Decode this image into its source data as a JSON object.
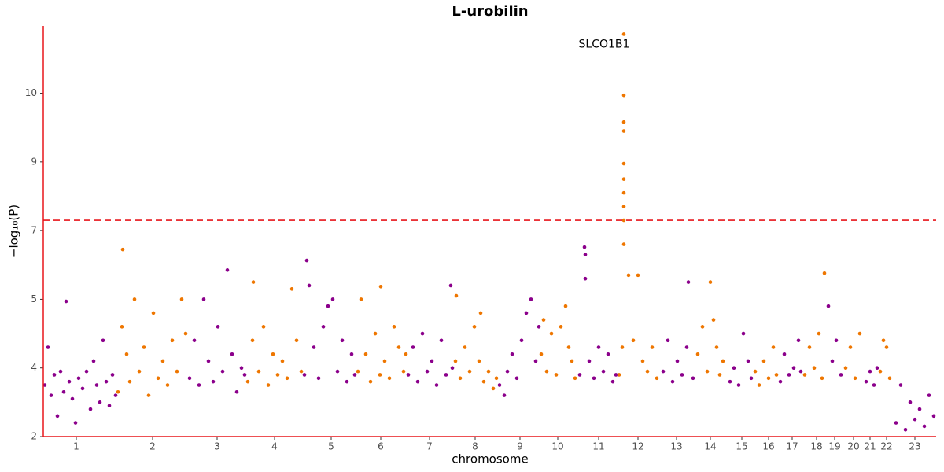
{
  "chart_data": {
    "type": "scatter",
    "title": "L-urobilin",
    "xlabel": "chromosome",
    "ylabel": "−log₁₀(P)",
    "annotation": "SLCO1B1",
    "threshold": 7.3,
    "threshold_color": "#e8161b",
    "xlim": [
      0,
      1135
    ],
    "xticks": [
      {
        "value": 42,
        "label": "1"
      },
      {
        "value": 139,
        "label": "2"
      },
      {
        "value": 221,
        "label": "3"
      },
      {
        "value": 294,
        "label": "4"
      },
      {
        "value": 366,
        "label": "5"
      },
      {
        "value": 429,
        "label": "6"
      },
      {
        "value": 491,
        "label": "7"
      },
      {
        "value": 549,
        "label": "8"
      },
      {
        "value": 606,
        "label": "9"
      },
      {
        "value": 654,
        "label": "10"
      },
      {
        "value": 706,
        "label": "11"
      },
      {
        "value": 756,
        "label": "12"
      },
      {
        "value": 805,
        "label": "13"
      },
      {
        "value": 848,
        "label": "14"
      },
      {
        "value": 888,
        "label": "15"
      },
      {
        "value": 922,
        "label": "16"
      },
      {
        "value": 952,
        "label": "17"
      },
      {
        "value": 983,
        "label": "18"
      },
      {
        "value": 1006,
        "label": "19"
      },
      {
        "value": 1030,
        "label": "20"
      },
      {
        "value": 1051,
        "label": "21"
      },
      {
        "value": 1072,
        "label": "22"
      },
      {
        "value": 1108,
        "label": "23"
      }
    ],
    "ylim": [
      2,
      10.98
    ],
    "yticks": [
      2,
      4,
      5,
      7,
      9,
      10
    ],
    "series": [
      {
        "color": "#8b008b",
        "x": [
          2,
          6,
          10,
          14,
          18,
          22,
          26,
          29,
          33,
          37,
          41,
          45,
          50,
          55,
          60,
          64,
          68,
          72,
          76,
          80,
          84,
          88,
          92
        ],
        "values": [
          3.5,
          4.3,
          3.2,
          3.8,
          2.6,
          3.9,
          3.3,
          4.97,
          3.6,
          3.1,
          2.4,
          3.7,
          3.4,
          3.9,
          2.8,
          4.1,
          3.5,
          3.0,
          4.4,
          3.6,
          2.9,
          3.8,
          3.2
        ]
      },
      {
        "color": "#ee7600",
        "x": [
          95,
          100,
          101,
          106,
          110,
          116,
          122,
          128,
          134,
          140,
          146,
          152,
          158,
          164,
          170,
          176,
          181
        ],
        "values": [
          3.3,
          4.6,
          6.45,
          4.2,
          3.6,
          5.0,
          3.9,
          4.3,
          3.2,
          4.8,
          3.7,
          4.1,
          3.5,
          4.4,
          3.9,
          5.0,
          4.5
        ]
      },
      {
        "color": "#8b008b",
        "x": [
          186,
          192,
          198,
          204,
          210,
          216,
          222,
          228,
          234,
          240,
          246,
          252,
          256
        ],
        "values": [
          3.7,
          4.4,
          3.5,
          5.0,
          4.1,
          3.6,
          4.6,
          3.9,
          5.85,
          4.2,
          3.3,
          4.0,
          3.8
        ]
      },
      {
        "color": "#ee7600",
        "x": [
          260,
          266,
          267,
          274,
          280,
          286,
          292,
          298,
          304,
          310,
          316,
          322,
          328
        ],
        "values": [
          3.6,
          4.4,
          5.5,
          3.9,
          4.6,
          3.5,
          4.2,
          3.8,
          4.1,
          3.7,
          5.3,
          4.4,
          3.9
        ]
      },
      {
        "color": "#8b008b",
        "x": [
          332,
          335,
          338,
          344,
          350,
          356,
          362,
          368,
          374,
          380,
          386,
          392,
          396
        ],
        "values": [
          3.8,
          6.13,
          5.4,
          4.3,
          3.7,
          4.6,
          4.9,
          5.0,
          3.9,
          4.4,
          3.6,
          4.2,
          3.8
        ]
      },
      {
        "color": "#ee7600",
        "x": [
          400,
          404,
          410,
          416,
          422,
          428,
          429,
          434,
          440,
          446,
          452,
          458,
          461
        ],
        "values": [
          3.9,
          5.0,
          4.2,
          3.6,
          4.5,
          3.8,
          5.37,
          4.1,
          3.7,
          4.6,
          4.3,
          3.9,
          4.2
        ]
      },
      {
        "color": "#8b008b",
        "x": [
          464,
          470,
          476,
          482,
          488,
          494,
          500,
          506,
          512,
          518,
          520
        ],
        "values": [
          3.8,
          4.3,
          3.6,
          4.5,
          3.9,
          4.1,
          3.5,
          4.4,
          3.8,
          5.4,
          4.0
        ]
      },
      {
        "color": "#ee7600",
        "x": [
          524,
          525,
          530,
          536,
          542,
          548,
          554,
          556,
          560,
          566,
          572,
          576
        ],
        "values": [
          4.1,
          5.1,
          3.7,
          4.3,
          3.9,
          4.6,
          4.1,
          4.8,
          3.6,
          3.9,
          3.4,
          3.7
        ]
      },
      {
        "color": "#8b008b",
        "x": [
          580,
          586,
          590,
          596,
          602,
          608,
          614,
          620,
          626,
          630
        ],
        "values": [
          3.5,
          3.2,
          3.9,
          4.2,
          3.7,
          4.4,
          4.8,
          5.0,
          4.1,
          4.6
        ]
      },
      {
        "color": "#ee7600",
        "x": [
          633,
          636,
          640,
          646,
          652,
          658,
          664,
          668,
          672,
          676
        ],
        "values": [
          4.2,
          4.7,
          3.9,
          4.5,
          3.8,
          4.6,
          4.9,
          4.3,
          4.1,
          3.7
        ]
      },
      {
        "color": "#8b008b",
        "x": [
          682,
          688,
          689,
          689,
          694,
          700,
          706,
          712,
          718,
          724,
          728
        ],
        "values": [
          3.8,
          6.52,
          6.3,
          5.6,
          4.1,
          3.7,
          4.3,
          3.9,
          4.2,
          3.6,
          3.8
        ]
      },
      {
        "color": "#ee7600",
        "x": [
          732,
          736,
          738,
          738,
          738,
          738,
          738,
          738,
          738,
          738,
          738,
          738,
          744,
          750,
          756,
          762,
          768,
          774,
          780
        ],
        "values": [
          3.8,
          4.3,
          10.86,
          9.97,
          9.58,
          9.45,
          8.95,
          8.5,
          8.1,
          7.7,
          7.3,
          6.6,
          5.7,
          4.4,
          5.7,
          4.1,
          3.9,
          4.3,
          3.7
        ]
      },
      {
        "color": "#8b008b",
        "x": [
          788,
          794,
          800,
          806,
          812,
          818,
          820,
          826
        ],
        "values": [
          3.9,
          4.4,
          3.6,
          4.1,
          3.8,
          4.3,
          5.5,
          3.7
        ]
      },
      {
        "color": "#ee7600",
        "x": [
          832,
          838,
          844,
          848,
          852,
          856,
          860,
          864
        ],
        "values": [
          4.2,
          4.6,
          3.9,
          5.5,
          4.7,
          4.3,
          3.8,
          4.1
        ]
      },
      {
        "color": "#8b008b",
        "x": [
          873,
          878,
          884,
          890,
          896,
          900
        ],
        "values": [
          3.6,
          4.0,
          3.5,
          4.5,
          4.1,
          3.7
        ]
      },
      {
        "color": "#ee7600",
        "x": [
          905,
          910,
          916,
          922,
          928,
          932
        ],
        "values": [
          3.9,
          3.5,
          4.1,
          3.7,
          4.3,
          3.8
        ]
      },
      {
        "color": "#8b008b",
        "x": [
          937,
          942,
          948,
          954,
          960,
          963
        ],
        "values": [
          3.6,
          4.2,
          3.8,
          4.0,
          4.4,
          3.9
        ]
      },
      {
        "color": "#ee7600",
        "x": [
          968,
          974,
          980,
          986,
          990,
          993
        ],
        "values": [
          3.8,
          4.3,
          4.0,
          4.5,
          3.7,
          5.76
        ]
      },
      {
        "color": "#8b008b",
        "x": [
          998,
          1003,
          1008,
          1014
        ],
        "values": [
          4.9,
          4.1,
          4.4,
          3.8
        ]
      },
      {
        "color": "#ee7600",
        "x": [
          1020,
          1026,
          1032,
          1038
        ],
        "values": [
          4.0,
          4.3,
          3.7,
          4.5
        ]
      },
      {
        "color": "#8b008b",
        "x": [
          1046,
          1051,
          1056,
          1060
        ],
        "values": [
          3.6,
          3.9,
          3.5,
          4.0
        ]
      },
      {
        "color": "#ee7600",
        "x": [
          1064,
          1068,
          1072,
          1076
        ],
        "values": [
          3.9,
          4.4,
          4.3,
          3.7
        ]
      },
      {
        "color": "#8b008b",
        "x": [
          1084,
          1090,
          1096,
          1102,
          1108,
          1114,
          1120,
          1126,
          1132
        ],
        "values": [
          2.4,
          3.5,
          2.2,
          3.0,
          2.5,
          2.8,
          2.3,
          3.2,
          2.6
        ]
      }
    ]
  }
}
